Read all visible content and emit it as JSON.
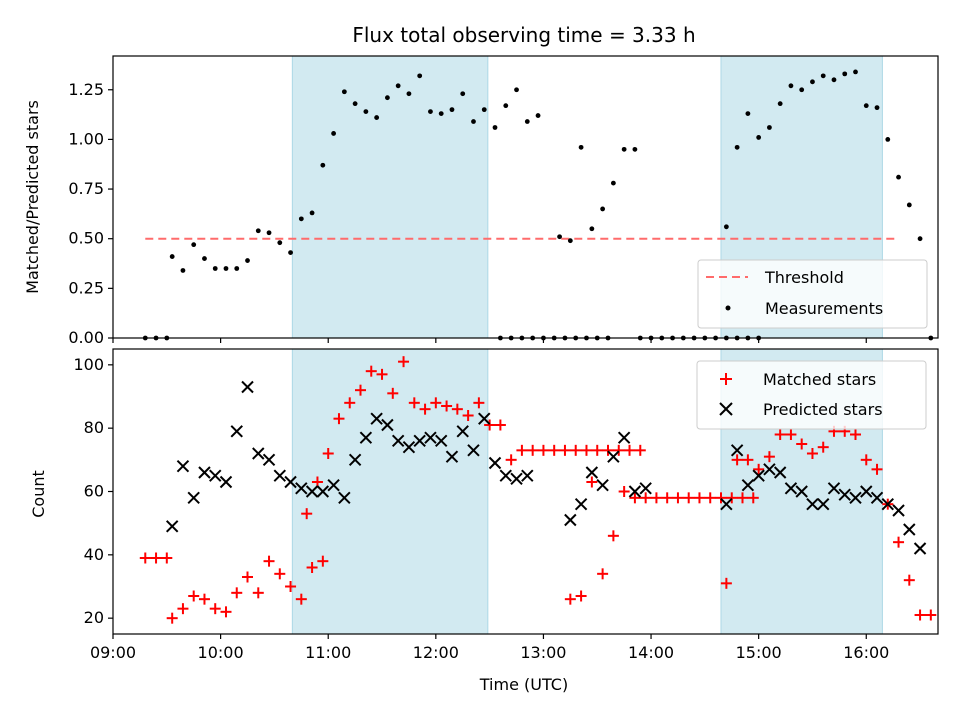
{
  "chart_data": [
    {
      "type": "scatter",
      "title": "Flux total observing time = 3.33 h",
      "xlabel": "",
      "ylabel": "Matched/Predicted stars",
      "xlim": [
        "09:00",
        "16:40"
      ],
      "ylim": [
        0,
        1.42
      ],
      "yticks": [
        0.0,
        0.25,
        0.5,
        0.75,
        1.0,
        1.25
      ],
      "ytick_labels": [
        "0.00",
        "0.25",
        "0.50",
        "0.75",
        "1.00",
        "1.25"
      ],
      "grid": false,
      "legend_position": "lower-right",
      "shaded_intervals": [
        [
          "10:40",
          "12:29"
        ],
        [
          "14:39",
          "16:09"
        ]
      ],
      "shade_color": "#add8e6",
      "threshold": {
        "name": "Threshold",
        "value": 0.5,
        "from": "09:18",
        "to": "16:18",
        "color": "#ff6b6b",
        "style": "dashed"
      },
      "series": [
        {
          "name": "Measurements",
          "marker": "dot",
          "color": "#000000",
          "points": [
            [
              "09:18",
              0
            ],
            [
              "09:24",
              0
            ],
            [
              "09:30",
              0
            ],
            [
              "09:33",
              0.41
            ],
            [
              "09:39",
              0.34
            ],
            [
              "09:45",
              0.47
            ],
            [
              "09:51",
              0.4
            ],
            [
              "09:57",
              0.35
            ],
            [
              "10:03",
              0.35
            ],
            [
              "10:09",
              0.35
            ],
            [
              "10:15",
              0.39
            ],
            [
              "10:21",
              0.54
            ],
            [
              "10:27",
              0.53
            ],
            [
              "10:33",
              0.48
            ],
            [
              "10:39",
              0.43
            ],
            [
              "10:45",
              0.6
            ],
            [
              "10:51",
              0.63
            ],
            [
              "10:57",
              0.87
            ],
            [
              "11:03",
              1.03
            ],
            [
              "11:09",
              1.24
            ],
            [
              "11:15",
              1.18
            ],
            [
              "11:21",
              1.14
            ],
            [
              "11:27",
              1.11
            ],
            [
              "11:33",
              1.21
            ],
            [
              "11:39",
              1.27
            ],
            [
              "11:45",
              1.23
            ],
            [
              "11:51",
              1.32
            ],
            [
              "11:57",
              1.14
            ],
            [
              "12:03",
              1.13
            ],
            [
              "12:09",
              1.15
            ],
            [
              "12:15",
              1.23
            ],
            [
              "12:21",
              1.09
            ],
            [
              "12:27",
              1.15
            ],
            [
              "12:33",
              1.06
            ],
            [
              "12:39",
              1.17
            ],
            [
              "12:45",
              1.25
            ],
            [
              "12:51",
              1.09
            ],
            [
              "12:57",
              1.12
            ],
            [
              "12:36",
              0
            ],
            [
              "12:42",
              0
            ],
            [
              "12:48",
              0
            ],
            [
              "12:54",
              0
            ],
            [
              "13:00",
              0
            ],
            [
              "13:06",
              0
            ],
            [
              "13:12",
              0
            ],
            [
              "13:18",
              0
            ],
            [
              "13:24",
              0
            ],
            [
              "13:30",
              0
            ],
            [
              "13:36",
              0
            ],
            [
              "13:09",
              0.51
            ],
            [
              "13:15",
              0.49
            ],
            [
              "13:21",
              0.96
            ],
            [
              "13:27",
              0.55
            ],
            [
              "13:33",
              0.65
            ],
            [
              "13:39",
              0.78
            ],
            [
              "13:45",
              0.95
            ],
            [
              "13:51",
              0.95
            ],
            [
              "13:54",
              0
            ],
            [
              "14:00",
              0
            ],
            [
              "14:06",
              0
            ],
            [
              "14:12",
              0
            ],
            [
              "14:18",
              0
            ],
            [
              "14:24",
              0
            ],
            [
              "14:30",
              0
            ],
            [
              "14:36",
              0
            ],
            [
              "14:42",
              0
            ],
            [
              "14:48",
              0
            ],
            [
              "14:54",
              0
            ],
            [
              "15:00",
              0
            ],
            [
              "14:42",
              0.56
            ],
            [
              "14:48",
              0.96
            ],
            [
              "14:54",
              1.13
            ],
            [
              "15:00",
              1.01
            ],
            [
              "15:06",
              1.06
            ],
            [
              "15:12",
              1.18
            ],
            [
              "15:18",
              1.27
            ],
            [
              "15:24",
              1.25
            ],
            [
              "15:30",
              1.29
            ],
            [
              "15:36",
              1.32
            ],
            [
              "15:42",
              1.3
            ],
            [
              "15:48",
              1.33
            ],
            [
              "15:54",
              1.34
            ],
            [
              "16:00",
              1.17
            ],
            [
              "16:06",
              1.16
            ],
            [
              "16:12",
              1.0
            ],
            [
              "16:18",
              0.81
            ],
            [
              "16:24",
              0.67
            ],
            [
              "16:30",
              0.5
            ],
            [
              "16:36",
              0
            ]
          ]
        }
      ]
    },
    {
      "type": "scatter",
      "title": "",
      "xlabel": "Time (UTC)",
      "ylabel": "Count",
      "xlim": [
        "09:00",
        "16:40"
      ],
      "xticks": [
        "09:00",
        "10:00",
        "11:00",
        "12:00",
        "13:00",
        "14:00",
        "15:00",
        "16:00"
      ],
      "ylim": [
        15,
        105
      ],
      "yticks": [
        20,
        40,
        60,
        80,
        100
      ],
      "grid": false,
      "legend_position": "upper-right",
      "shaded_intervals": [
        [
          "10:40",
          "12:29"
        ],
        [
          "14:39",
          "16:09"
        ]
      ],
      "shade_color": "#add8e6",
      "series": [
        {
          "name": "Matched stars",
          "marker": "plus",
          "color": "#ff0000",
          "points": [
            [
              "09:18",
              39
            ],
            [
              "09:24",
              39
            ],
            [
              "09:30",
              39
            ],
            [
              "09:33",
              20
            ],
            [
              "09:39",
              23
            ],
            [
              "09:45",
              27
            ],
            [
              "09:51",
              26
            ],
            [
              "09:57",
              23
            ],
            [
              "10:03",
              22
            ],
            [
              "10:09",
              28
            ],
            [
              "10:15",
              33
            ],
            [
              "10:21",
              28
            ],
            [
              "10:27",
              38
            ],
            [
              "10:33",
              34
            ],
            [
              "10:39",
              30
            ],
            [
              "10:45",
              26
            ],
            [
              "10:51",
              36
            ],
            [
              "10:57",
              38
            ],
            [
              "10:48",
              53
            ],
            [
              "10:54",
              63
            ],
            [
              "11:00",
              72
            ],
            [
              "11:06",
              83
            ],
            [
              "11:12",
              88
            ],
            [
              "11:18",
              92
            ],
            [
              "11:24",
              98
            ],
            [
              "11:30",
              97
            ],
            [
              "11:36",
              91
            ],
            [
              "11:42",
              101
            ],
            [
              "11:48",
              88
            ],
            [
              "11:54",
              86
            ],
            [
              "12:00",
              88
            ],
            [
              "12:06",
              87
            ],
            [
              "12:12",
              86
            ],
            [
              "12:18",
              84
            ],
            [
              "12:24",
              88
            ],
            [
              "12:30",
              81
            ],
            [
              "12:36",
              81
            ],
            [
              "12:42",
              70
            ],
            [
              "12:48",
              73
            ],
            [
              "12:54",
              73
            ],
            [
              "13:00",
              73
            ],
            [
              "13:06",
              73
            ],
            [
              "13:12",
              73
            ],
            [
              "13:18",
              73
            ],
            [
              "13:24",
              73
            ],
            [
              "13:30",
              73
            ],
            [
              "13:36",
              73
            ],
            [
              "13:42",
              73
            ],
            [
              "13:48",
              73
            ],
            [
              "13:54",
              73
            ],
            [
              "13:15",
              26
            ],
            [
              "13:21",
              27
            ],
            [
              "13:27",
              63
            ],
            [
              "13:33",
              34
            ],
            [
              "13:39",
              46
            ],
            [
              "13:45",
              60
            ],
            [
              "13:51",
              58
            ],
            [
              "13:57",
              58
            ],
            [
              "14:03",
              58
            ],
            [
              "14:09",
              58
            ],
            [
              "14:15",
              58
            ],
            [
              "14:21",
              58
            ],
            [
              "14:27",
              58
            ],
            [
              "14:33",
              58
            ],
            [
              "14:39",
              58
            ],
            [
              "14:45",
              58
            ],
            [
              "14:51",
              58
            ],
            [
              "14:57",
              58
            ],
            [
              "14:42",
              31
            ],
            [
              "14:48",
              70
            ],
            [
              "14:54",
              70
            ],
            [
              "15:00",
              67
            ],
            [
              "15:06",
              71
            ],
            [
              "15:12",
              78
            ],
            [
              "15:18",
              78
            ],
            [
              "15:24",
              75
            ],
            [
              "15:30",
              72
            ],
            [
              "15:36",
              74
            ],
            [
              "15:42",
              79
            ],
            [
              "15:48",
              79
            ],
            [
              "15:54",
              78
            ],
            [
              "16:00",
              70
            ],
            [
              "16:06",
              67
            ],
            [
              "16:12",
              56
            ],
            [
              "16:18",
              44
            ],
            [
              "16:24",
              32
            ],
            [
              "16:30",
              21
            ],
            [
              "16:36",
              21
            ]
          ]
        },
        {
          "name": "Predicted stars",
          "marker": "x",
          "color": "#000000",
          "points": [
            [
              "09:33",
              49
            ],
            [
              "09:39",
              68
            ],
            [
              "09:45",
              58
            ],
            [
              "09:51",
              66
            ],
            [
              "09:57",
              65
            ],
            [
              "10:03",
              63
            ],
            [
              "10:09",
              79
            ],
            [
              "10:15",
              93
            ],
            [
              "10:21",
              72
            ],
            [
              "10:27",
              70
            ],
            [
              "10:33",
              65
            ],
            [
              "10:39",
              63
            ],
            [
              "10:45",
              61
            ],
            [
              "10:51",
              60
            ],
            [
              "10:57",
              60
            ],
            [
              "11:03",
              62
            ],
            [
              "11:09",
              58
            ],
            [
              "11:15",
              70
            ],
            [
              "11:21",
              77
            ],
            [
              "11:27",
              83
            ],
            [
              "11:33",
              81
            ],
            [
              "11:39",
              76
            ],
            [
              "11:45",
              74
            ],
            [
              "11:51",
              76
            ],
            [
              "11:57",
              77
            ],
            [
              "12:03",
              76
            ],
            [
              "12:09",
              71
            ],
            [
              "12:15",
              79
            ],
            [
              "12:21",
              73
            ],
            [
              "12:27",
              83
            ],
            [
              "12:33",
              69
            ],
            [
              "12:39",
              65
            ],
            [
              "12:45",
              64
            ],
            [
              "12:51",
              65
            ],
            [
              "13:15",
              51
            ],
            [
              "13:21",
              56
            ],
            [
              "13:27",
              66
            ],
            [
              "13:33",
              62
            ],
            [
              "13:39",
              71
            ],
            [
              "13:45",
              77
            ],
            [
              "13:51",
              60
            ],
            [
              "13:57",
              61
            ],
            [
              "14:42",
              56
            ],
            [
              "14:48",
              73
            ],
            [
              "14:54",
              62
            ],
            [
              "15:00",
              65
            ],
            [
              "15:06",
              67
            ],
            [
              "15:12",
              66
            ],
            [
              "15:18",
              61
            ],
            [
              "15:24",
              60
            ],
            [
              "15:30",
              56
            ],
            [
              "15:36",
              56
            ],
            [
              "15:42",
              61
            ],
            [
              "15:48",
              59
            ],
            [
              "15:54",
              58
            ],
            [
              "16:00",
              60
            ],
            [
              "16:06",
              58
            ],
            [
              "16:12",
              56
            ],
            [
              "16:18",
              54
            ],
            [
              "16:24",
              48
            ],
            [
              "16:30",
              42
            ]
          ]
        }
      ]
    }
  ]
}
